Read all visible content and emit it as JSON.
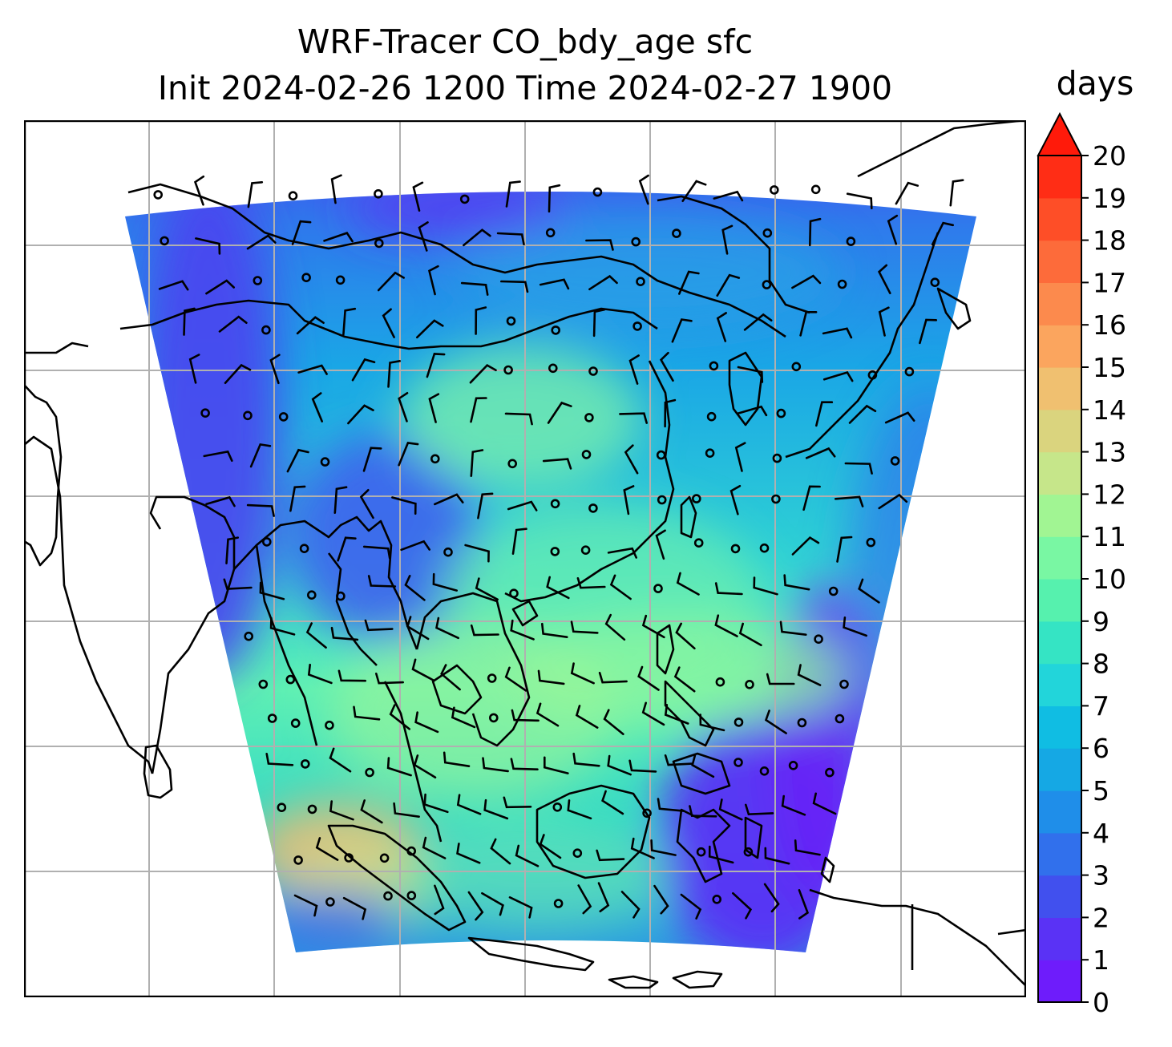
{
  "title_line1": "WRF-Tracer CO_bdy_age sfc",
  "title_line2": "Init 2024-02-26 1200 Time 2024-02-27 1900",
  "colorbar": {
    "label": "days",
    "min": 0,
    "max": 20,
    "extend": "max",
    "ticks": [
      "0",
      "1",
      "2",
      "3",
      "4",
      "5",
      "6",
      "7",
      "8",
      "9",
      "10",
      "11",
      "12",
      "13",
      "14",
      "15",
      "16",
      "17",
      "18",
      "19",
      "20"
    ],
    "colors": [
      "#6e1cfb",
      "#5a32f5",
      "#4150ee",
      "#3170ec",
      "#1f8ee9",
      "#15a8e4",
      "#10bde3",
      "#22d5da",
      "#35e4c4",
      "#56f1ae",
      "#79f7a3",
      "#a1f593",
      "#c6e68a",
      "#dad47e",
      "#f0c070",
      "#fba55e",
      "#fc8a4d",
      "#fd6b3a",
      "#fe4e27",
      "#ff2d15"
    ],
    "extend_color": "#ff1a0a"
  },
  "map": {
    "gridline_color": "#b0b0b0",
    "coastline_color": "#000000",
    "wind_barb_color": "#000000",
    "field_description_colors": {
      "background_low": "#4a44f0",
      "mid": "#1f9be6",
      "high": "#7cf5a6",
      "hotspot": "#f0b070"
    }
  }
}
